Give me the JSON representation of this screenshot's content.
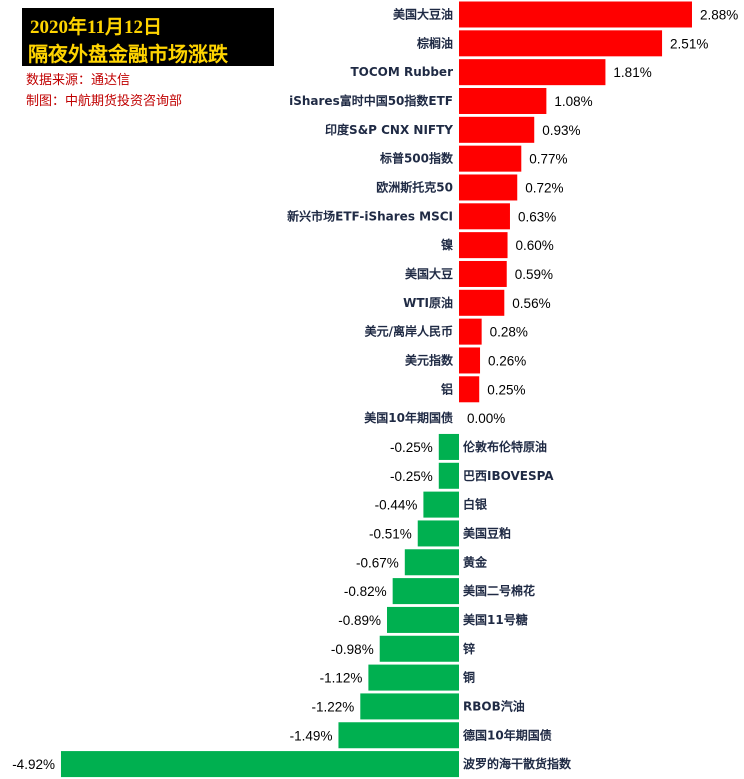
{
  "header": {
    "title_line1": "2020年11月12日",
    "title_line2": "隔夜外盘金融市场涨跌",
    "source": "数据来源：通达信",
    "maker": "制图：中航期货投资咨询部"
  },
  "colors": {
    "positive": "#ff0000",
    "negative": "#00b050",
    "title_bg": "#000000",
    "title_text": "#ffd400",
    "meta_text": "#c00000"
  },
  "chart_data": {
    "type": "bar",
    "orientation": "horizontal",
    "unit": "%",
    "categories": [
      "美国大豆油",
      "棕榈油",
      "TOCOM Rubber",
      "iShares富时中国50指数ETF",
      "印度S&P CNX NIFTY",
      "标普500指数",
      "欧洲斯托克50",
      "新兴市场ETF-iShares MSCI",
      "镍",
      "美国大豆",
      "WTI原油",
      "美元/离岸人民币",
      "美元指数",
      "铝",
      "美国10年期国债",
      "伦敦布伦特原油",
      "巴西IBOVESPA",
      "白银",
      "美国豆粕",
      "黄金",
      "美国二号棉花",
      "美国11号糖",
      "锌",
      "铜",
      "RBOB汽油",
      "德国10年期国债",
      "波罗的海干散货指数"
    ],
    "values": [
      2.88,
      2.51,
      1.81,
      1.08,
      0.93,
      0.77,
      0.72,
      0.63,
      0.6,
      0.59,
      0.56,
      0.28,
      0.26,
      0.25,
      0.0,
      -0.25,
      -0.25,
      -0.44,
      -0.51,
      -0.67,
      -0.82,
      -0.89,
      -0.98,
      -1.12,
      -1.22,
      -1.49,
      -4.92
    ],
    "value_labels": [
      "2.88%",
      "2.51%",
      "1.81%",
      "1.08%",
      "0.93%",
      "0.77%",
      "0.72%",
      "0.63%",
      "0.60%",
      "0.59%",
      "0.56%",
      "0.28%",
      "0.26%",
      "0.25%",
      "0.00%",
      "-0.25%",
      "-0.25%",
      "-0.44%",
      "-0.51%",
      "-0.67%",
      "-0.82%",
      "-0.89%",
      "-0.98%",
      "-1.12%",
      "-1.22%",
      "-1.49%",
      "-4.92%"
    ],
    "xlim": [
      -4.92,
      2.88
    ],
    "grid": false,
    "legend": "none"
  }
}
